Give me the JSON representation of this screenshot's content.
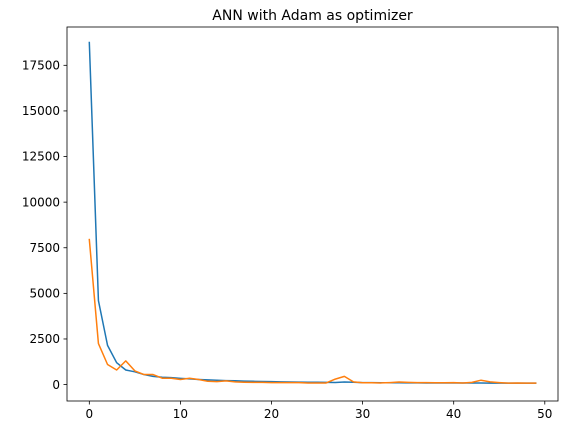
{
  "chart_data": {
    "type": "line",
    "title": "ANN with Adam as optimizer",
    "xlabel": "",
    "ylabel": "",
    "xlim": [
      -2.45,
      51.45
    ],
    "ylim": [
      -900,
      19600
    ],
    "x_ticks": [
      0,
      10,
      20,
      30,
      40,
      50
    ],
    "y_ticks": [
      0,
      2500,
      5000,
      7500,
      10000,
      12500,
      15000,
      17500
    ],
    "grid": false,
    "legend": "none",
    "colors": [
      "#1f77b4",
      "#ff7f0e"
    ],
    "x": [
      0,
      1,
      2,
      3,
      4,
      5,
      6,
      7,
      8,
      9,
      10,
      11,
      12,
      13,
      14,
      15,
      16,
      17,
      18,
      19,
      20,
      21,
      22,
      23,
      24,
      25,
      26,
      27,
      28,
      29,
      30,
      31,
      32,
      33,
      34,
      35,
      36,
      37,
      38,
      39,
      40,
      41,
      42,
      43,
      44,
      45,
      46,
      47,
      48,
      49
    ],
    "series": [
      {
        "values": [
          18750,
          4600,
          2150,
          1200,
          800,
          700,
          550,
          450,
          400,
          380,
          340,
          310,
          280,
          260,
          240,
          220,
          210,
          190,
          180,
          170,
          160,
          150,
          140,
          135,
          130,
          125,
          120,
          115,
          140,
          130,
          110,
          105,
          100,
          100,
          100,
          95,
          95,
          90,
          90,
          90,
          90,
          85,
          85,
          85,
          80,
          80,
          80,
          80,
          80,
          80
        ]
      },
      {
        "values": [
          7950,
          2250,
          1100,
          800,
          1300,
          750,
          550,
          550,
          350,
          350,
          280,
          350,
          280,
          180,
          160,
          200,
          150,
          130,
          120,
          120,
          110,
          110,
          110,
          110,
          90,
          90,
          90,
          300,
          450,
          150,
          100,
          100,
          90,
          110,
          140,
          120,
          110,
          110,
          100,
          100,
          110,
          90,
          120,
          240,
          150,
          110,
          80,
          90,
          80,
          80
        ]
      }
    ]
  }
}
